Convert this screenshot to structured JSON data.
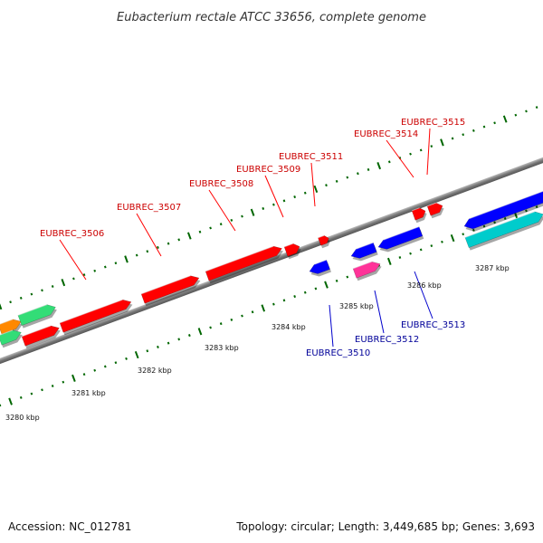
{
  "title": "Eubacterium rectale ATCC 33656, complete genome",
  "footer": {
    "accession": "Accession: NC_012781",
    "topology": "Topology: circular; Length: 3,449,685 bp; Genes: 3,693"
  },
  "colors": {
    "forward_gene": "#ff0000",
    "reverse_gene": "#0000ff",
    "pink_gene": "#ff3399",
    "cyan_gene": "#00cccc",
    "green_gene": "#33dd77",
    "orange_gene": "#ff8800",
    "backbone": "#808080",
    "tick": "#006600",
    "forward_label": "#cc0000",
    "reverse_label": "#000099"
  },
  "kbp_labels": [
    "3280 kbp",
    "3281 kbp",
    "3282 kbp",
    "3283 kbp",
    "3284 kbp",
    "3285 kbp",
    "3286 kbp",
    "3287 kbp"
  ],
  "forward_labels": [
    "EUBREC_3506",
    "EUBREC_3507",
    "EUBREC_3508",
    "EUBREC_3509",
    "EUBREC_3511",
    "EUBREC_3514",
    "EUBREC_3515"
  ],
  "reverse_labels": [
    "EUBREC_3510",
    "EUBREC_3512",
    "EUBREC_3513"
  ]
}
